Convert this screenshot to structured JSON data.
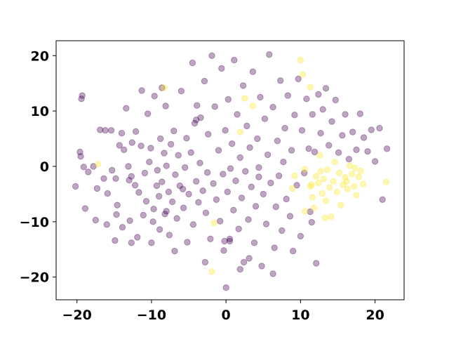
{
  "chart_data": {
    "type": "scatter",
    "title": "",
    "xlabel": "",
    "ylabel": "",
    "xlim": [
      -22.8,
      23.9
    ],
    "ylim": [
      -24.1,
      22.7
    ],
    "xticks": [
      -20,
      -10,
      0,
      10,
      20
    ],
    "yticks": [
      -20,
      -10,
      0,
      10,
      20
    ],
    "xtick_labels": [
      "−20",
      "−10",
      "0",
      "10",
      "20"
    ],
    "ytick_labels": [
      "−20",
      "−10",
      "0",
      "10",
      "20"
    ],
    "grid": false,
    "legend": "none",
    "marker_alpha": 0.35,
    "series": [
      {
        "color": "#440154",
        "points": [
          [
            -19.3,
            12.8
          ],
          [
            -19.4,
            12.2
          ],
          [
            -19.6,
            2.6
          ],
          [
            -19.5,
            1.8
          ],
          [
            -19.1,
            -0.1
          ],
          [
            -18.9,
            -7.6
          ],
          [
            -20.2,
            -3.6
          ],
          [
            -18.5,
            -1.0
          ],
          [
            -17.5,
            -9.7
          ],
          [
            -17.3,
            -4.0
          ],
          [
            -16.9,
            6.6
          ],
          [
            -16.4,
            -2.2
          ],
          [
            -16.2,
            6.5
          ],
          [
            -15.9,
            -4.9
          ],
          [
            -15.4,
            6.5
          ],
          [
            -15.3,
            -0.7
          ],
          [
            -14.8,
            -2.2
          ],
          [
            -14.9,
            -13.4
          ],
          [
            -14.7,
            -8.7
          ],
          [
            -14.6,
            -7.0
          ],
          [
            -14.3,
            3.8
          ],
          [
            -14.0,
            6.0
          ],
          [
            -13.9,
            -11.0
          ],
          [
            -13.7,
            3.0
          ],
          [
            -13.4,
            10.5
          ],
          [
            -13.1,
            0.0
          ],
          [
            -12.9,
            -9.8
          ],
          [
            -12.7,
            -1.8
          ],
          [
            -12.7,
            -13.8
          ],
          [
            -12.2,
            -3.4
          ],
          [
            -12.1,
            6.3
          ],
          [
            -11.9,
            -12.8
          ],
          [
            -11.7,
            -4.7
          ],
          [
            -11.3,
            13.7
          ],
          [
            -11.4,
            3.7
          ],
          [
            -11.1,
            -8.8
          ],
          [
            -10.9,
            -1.2
          ],
          [
            -10.7,
            -6.3
          ],
          [
            -10.5,
            9.5
          ],
          [
            -10.3,
            0.8
          ],
          [
            -10.1,
            3.3
          ],
          [
            -10.0,
            -13.8
          ],
          [
            -9.8,
            -10.0
          ],
          [
            -9.7,
            -7.7
          ],
          [
            -9.3,
            -3.5
          ],
          [
            -9.2,
            -0.7
          ],
          [
            -9.0,
            -5.4
          ],
          [
            -8.8,
            5.0
          ],
          [
            -8.9,
            -11.4
          ],
          [
            -8.6,
            -2.8
          ],
          [
            -8.3,
            2.4
          ],
          [
            -8.2,
            -8.6
          ],
          [
            -8.1,
            10.9
          ],
          [
            -8.0,
            0.1
          ],
          [
            -7.7,
            -4.6
          ],
          [
            -7.6,
            -12.4
          ],
          [
            -7.4,
            4.0
          ],
          [
            -7.2,
            -6.4
          ],
          [
            -7.0,
            6.4
          ],
          [
            -6.8,
            -1.5
          ],
          [
            -6.6,
            -9.4
          ],
          [
            -6.4,
            2.0
          ],
          [
            -6.2,
            -3.5
          ],
          [
            -6.0,
            13.6
          ],
          [
            -5.7,
            -7.5
          ],
          [
            -5.5,
            -0.2
          ],
          [
            -5.3,
            5.1
          ],
          [
            -5.2,
            -13.7
          ],
          [
            -5.0,
            -5.0
          ],
          [
            -4.7,
            2.5
          ],
          [
            -4.5,
            18.7
          ],
          [
            -4.4,
            -10.5
          ],
          [
            -4.2,
            7.8
          ],
          [
            -4.0,
            -2.7
          ],
          [
            -3.9,
            11.0
          ],
          [
            -3.7,
            -6.5
          ],
          [
            -3.5,
            0.6
          ],
          [
            -3.4,
            8.8
          ],
          [
            -3.1,
            -4.4
          ],
          [
            -2.9,
            15.4
          ],
          [
            -2.7,
            -8.4
          ],
          [
            -2.5,
            -1.1
          ],
          [
            -2.4,
            5.8
          ],
          [
            -2.1,
            -13.1
          ],
          [
            -1.9,
            20.0
          ],
          [
            -1.7,
            -3.1
          ],
          [
            -1.5,
            10.8
          ],
          [
            -1.3,
            -6.0
          ],
          [
            -1.0,
            2.9
          ],
          [
            -0.8,
            -9.9
          ],
          [
            -0.6,
            17.7
          ],
          [
            -0.4,
            -1.4
          ],
          [
            -0.3,
            -15.2
          ],
          [
            -0.1,
            6.5
          ],
          [
            0.2,
            -4.6
          ],
          [
            0.3,
            12.1
          ],
          [
            0.5,
            -13.5
          ],
          [
            0.6,
            -0.4
          ],
          [
            0.8,
            4.1
          ],
          [
            1.0,
            -7.9
          ],
          [
            1.1,
            19.2
          ],
          [
            1.3,
            -2.6
          ],
          [
            1.5,
            9.4
          ],
          [
            1.7,
            -11.3
          ],
          [
            1.9,
            1.6
          ],
          [
            2.1,
            -5.7
          ],
          [
            2.3,
            14.6
          ],
          [
            2.4,
            -17.3
          ],
          [
            2.6,
            -0.9
          ],
          [
            2.8,
            7.3
          ],
          [
            3.0,
            -9.6
          ],
          [
            3.2,
            3.4
          ],
          [
            3.4,
            -3.7
          ],
          [
            3.6,
            17.1
          ],
          [
            3.8,
            -13.8
          ],
          [
            4.0,
            -7.2
          ],
          [
            4.2,
            5.0
          ],
          [
            4.4,
            -1.9
          ],
          [
            4.6,
            12.5
          ],
          [
            4.8,
            -18.0
          ],
          [
            5.0,
            -5.0
          ],
          [
            5.2,
            8.6
          ],
          [
            5.4,
            -10.4
          ],
          [
            5.6,
            2.1
          ],
          [
            5.8,
            20.2
          ],
          [
            6.0,
            -3.0
          ],
          [
            6.3,
            10.7
          ],
          [
            6.5,
            -14.7
          ],
          [
            6.7,
            -7.3
          ],
          [
            6.9,
            4.6
          ],
          [
            7.1,
            -1.7
          ],
          [
            7.3,
            15.5
          ],
          [
            7.5,
            -11.6
          ],
          [
            7.7,
            0.8
          ],
          [
            7.9,
            6.9
          ],
          [
            8.1,
            -5.9
          ],
          [
            8.3,
            12.8
          ],
          [
            8.6,
            -9.0
          ],
          [
            8.8,
            2.9
          ],
          [
            9.0,
            -15.3
          ],
          [
            9.2,
            9.3
          ],
          [
            9.5,
            -3.4
          ],
          [
            9.7,
            15.8
          ],
          [
            10.0,
            -12.6
          ],
          [
            10.2,
            6.5
          ],
          [
            10.5,
            -1.2
          ],
          [
            10.8,
            12.2
          ],
          [
            11.1,
            3.2
          ],
          [
            11.3,
            -8.2
          ],
          [
            11.6,
            9.4
          ],
          [
            11.9,
            2.6
          ],
          [
            12.1,
            -17.5
          ],
          [
            12.4,
            13.0
          ],
          [
            12.7,
            6.0
          ],
          [
            13.0,
            10.3
          ],
          [
            13.4,
            14.1
          ],
          [
            13.8,
            3.8
          ],
          [
            14.2,
            8.1
          ],
          [
            14.7,
            12.0
          ],
          [
            15.1,
            2.5
          ],
          [
            15.6,
            5.6
          ],
          [
            16.0,
            9.4
          ],
          [
            16.5,
            1.3
          ],
          [
            17.0,
            6.2
          ],
          [
            17.5,
            3.0
          ],
          [
            18.0,
            9.5
          ],
          [
            18.5,
            5.2
          ],
          [
            19.0,
            2.7
          ],
          [
            19.5,
            6.6
          ],
          [
            20.0,
            0.9
          ],
          [
            20.6,
            6.9
          ],
          [
            21.0,
            -6.0
          ],
          [
            21.6,
            3.2
          ],
          [
            -8.6,
            14.2
          ],
          [
            -8.0,
            -8.1
          ],
          [
            -5.8,
            -4.1
          ],
          [
            -4.0,
            8.4
          ],
          [
            -0.2,
            -13.5
          ],
          [
            0.5,
            -13.1
          ],
          [
            4.4,
            -0.2
          ],
          [
            -16.0,
            -10.5
          ],
          [
            -13.0,
            -2.5
          ],
          [
            -6.9,
            -15.3
          ],
          [
            3.1,
            -16.6
          ],
          [
            -17.8,
            0.0
          ],
          [
            -12.6,
            4.3
          ],
          [
            -9.6,
            12.7
          ],
          [
            -2.8,
            -17.3
          ],
          [
            1.9,
            -18.6
          ],
          [
            6.3,
            -19.4
          ],
          [
            11.5,
            -10.1
          ],
          [
            0.0,
            -21.9
          ]
        ]
      },
      {
        "color": "#fde725",
        "points": [
          [
            -17.2,
            0.4
          ],
          [
            -8.3,
            14.2
          ],
          [
            -1.6,
            -10.2
          ],
          [
            -1.9,
            -19.0
          ],
          [
            1.9,
            6.2
          ],
          [
            2.5,
            12.3
          ],
          [
            3.6,
            10.9
          ],
          [
            10.0,
            19.2
          ],
          [
            10.3,
            16.6
          ],
          [
            11.3,
            14.3
          ],
          [
            8.9,
            -4.0
          ],
          [
            9.2,
            -1.7
          ],
          [
            10.6,
            -0.5
          ],
          [
            11.3,
            -3.6
          ],
          [
            11.6,
            -5.6
          ],
          [
            11.8,
            -7.5
          ],
          [
            12.1,
            -1.8
          ],
          [
            12.4,
            -3.0
          ],
          [
            12.6,
            2.0
          ],
          [
            12.9,
            -4.9
          ],
          [
            13.1,
            -2.3
          ],
          [
            13.4,
            -6.2
          ],
          [
            13.6,
            -0.6
          ],
          [
            13.9,
            -3.8
          ],
          [
            14.1,
            -9.1
          ],
          [
            14.4,
            -2.7
          ],
          [
            14.6,
            0.8
          ],
          [
            14.9,
            -4.6
          ],
          [
            15.2,
            -1.2
          ],
          [
            15.4,
            -7.0
          ],
          [
            15.7,
            -3.3
          ],
          [
            16.0,
            -2.0
          ],
          [
            16.3,
            -4.1
          ],
          [
            16.6,
            0.1
          ],
          [
            16.9,
            -1.4
          ],
          [
            17.2,
            -3.6
          ],
          [
            17.5,
            -5.2
          ],
          [
            17.8,
            -1.9
          ],
          [
            18.1,
            -0.8
          ],
          [
            18.4,
            -3.2
          ],
          [
            11.5,
            -3.3
          ],
          [
            12.7,
            -0.9
          ],
          [
            16.2,
            -2.7
          ],
          [
            17.3,
            -0.3
          ],
          [
            21.5,
            -2.8
          ],
          [
            13.3,
            -9.3
          ],
          [
            10.6,
            -8.1
          ]
        ]
      }
    ]
  }
}
